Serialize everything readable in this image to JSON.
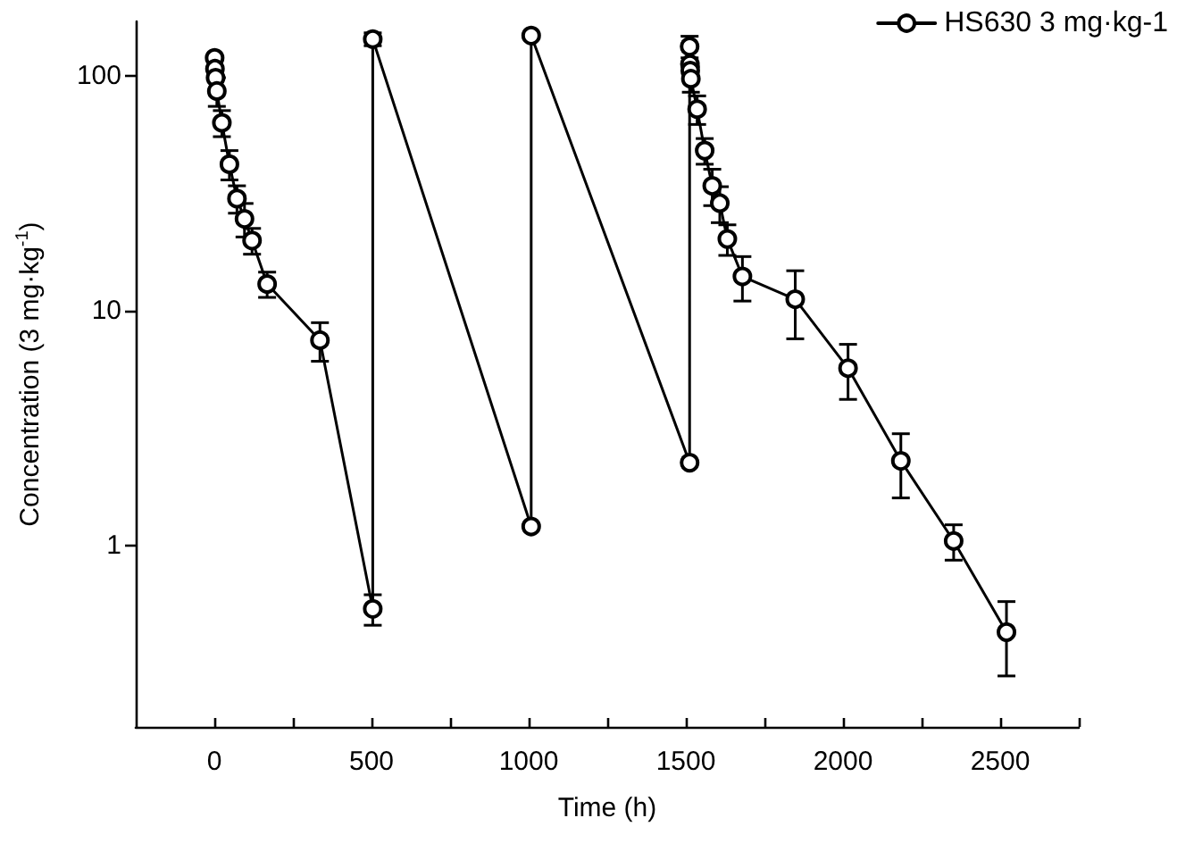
{
  "chart_data": {
    "type": "line",
    "xlabel": "Time (h)",
    "ylabel": "Concentration (3 mg·kg$^{-1}$)",
    "log": "y",
    "xlim": [
      -250,
      2750
    ],
    "ylim": [
      0.17,
      170
    ],
    "xticks": [
      0,
      {
        "value": 250,
        "label": null
      },
      500,
      {
        "value": 750,
        "label": null
      },
      1000,
      {
        "value": 1250,
        "label": null
      },
      1500,
      {
        "value": 1750,
        "label": null
      },
      2000,
      {
        "value": 2250,
        "label": null
      },
      2500,
      {
        "value": 2750,
        "label": null
      }
    ],
    "yticks": [
      1,
      10,
      100
    ],
    "legend": "top right",
    "marker": "circle",
    "line_style": "solid",
    "grid": false,
    "series": [
      {
        "name": "HS630 3 mg·kg-1",
        "color": "#000000",
        "x": [
          1,
          2,
          4,
          8,
          24,
          48,
          72,
          96,
          120,
          168,
          336,
          504,
          504,
          1008,
          1008,
          1512,
          1512,
          1513,
          1514,
          1516,
          1536,
          1560,
          1584,
          1608,
          1632,
          1680,
          1848,
          2016,
          2184,
          2352,
          2520
        ],
        "values": [
          119,
          107,
          98,
          86,
          63,
          42,
          30,
          24.6,
          19.9,
          13,
          7.5,
          0.54,
          143,
          1.21,
          148,
          2.26,
          133,
          112,
          105,
          97,
          72,
          48,
          34,
          28.7,
          20.2,
          14,
          11.2,
          5.7,
          2.3,
          1.05,
          0.43
        ],
        "errors": [
          null,
          null,
          null,
          12,
          8,
          6,
          4,
          4,
          2.5,
          1.6,
          1.4,
          0.08,
          9,
          null,
          null,
          null,
          14,
          null,
          null,
          12,
          10,
          6,
          6,
          5,
          3,
          3,
          3.6,
          1.5,
          0.7,
          0.18,
          0.15
        ]
      }
    ]
  }
}
